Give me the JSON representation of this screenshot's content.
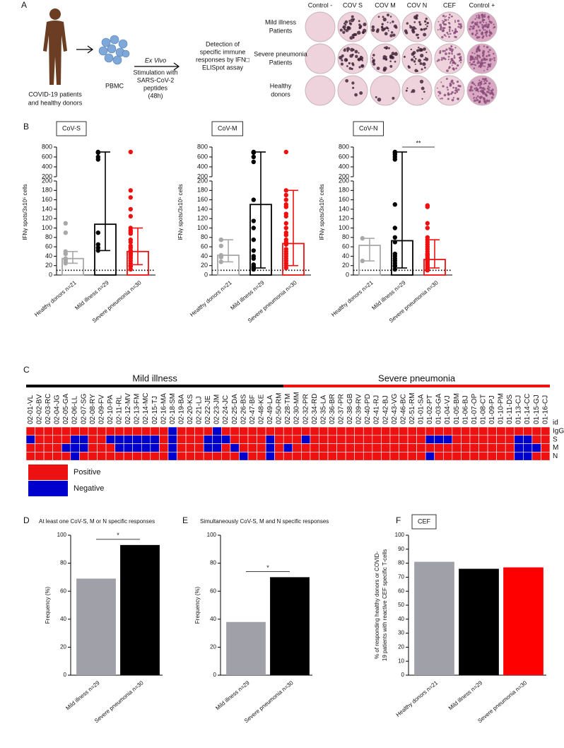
{
  "panel_labels": [
    "A",
    "B",
    "C",
    "D",
    "E",
    "F"
  ],
  "panel_a": {
    "source": [
      "COVID-19 patients",
      "and healthy donors"
    ],
    "pbmc": "PBMC",
    "method": [
      "Ex Vivo",
      "Stimulation with",
      "SARS-CoV-2",
      "peptides",
      "(48h)"
    ],
    "detection": [
      "Detection of",
      "specific immune",
      "responses by IFN□",
      "ELISpot assay"
    ],
    "columns": [
      "Control -",
      "COV S",
      "COV M",
      "COV N",
      "CEF",
      "Control +"
    ],
    "rows": [
      [
        "Mild illness",
        "Patients"
      ],
      [
        "Severe pneumonia",
        "Patients"
      ],
      [
        "Healthy",
        "donors"
      ]
    ]
  },
  "chart_data": [
    {
      "type": "dot-bar",
      "label": "CoV-S",
      "y_label": "IFNγ spots/3x10⁵ cells",
      "categories": [
        "Healthy donors n=21",
        "Mild illness n=29",
        "Severe pneumonia n=30"
      ],
      "colors": [
        "#a8a8a8",
        "#000000",
        "#ee1111"
      ],
      "values": [
        35,
        108,
        50
      ],
      "whisker_low": [
        25,
        52,
        22
      ],
      "whisker_high": [
        50,
        700,
        100
      ],
      "points": [
        [
          110,
          90,
          50,
          45,
          35,
          32,
          28,
          25
        ],
        [
          700,
          690,
          690,
          600,
          550,
          90,
          65,
          58,
          52
        ],
        [
          700,
          180,
          165,
          140,
          125,
          100,
          95,
          92,
          88,
          75,
          70,
          62,
          58,
          52,
          48,
          45,
          42,
          38,
          35,
          30,
          25,
          20,
          18,
          12
        ]
      ],
      "threshold": 10,
      "ylim": [
        0,
        800
      ],
      "axis_break": 200,
      "yticks": [
        0,
        20,
        40,
        60,
        80,
        100,
        120,
        140,
        160,
        180,
        200
      ],
      "yticks_upper": [
        200,
        400,
        600,
        800
      ]
    },
    {
      "type": "dot-bar",
      "label": "CoV-M",
      "y_label": "IFNγ spots/3x10⁵ cells",
      "categories": [
        "Healthy donors n=21",
        "Mild illness n=29",
        "Severe pneumonia n=30"
      ],
      "colors": [
        "#a8a8a8",
        "#000000",
        "#ee1111"
      ],
      "values": [
        42,
        150,
        67
      ],
      "whisker_low": [
        28,
        15,
        20
      ],
      "whisker_high": [
        75,
        700,
        180
      ],
      "points": [
        [
          75,
          75,
          62,
          42,
          40,
          38,
          28
        ],
        [
          700,
          690,
          690,
          600,
          500,
          160,
          115,
          100,
          75,
          52,
          40,
          35,
          22,
          18,
          15,
          12
        ],
        [
          700,
          180,
          170,
          160,
          150,
          145,
          130,
          125,
          110,
          100,
          90,
          85,
          75,
          70,
          65,
          55,
          50,
          45,
          40,
          35,
          30,
          25,
          20,
          15
        ]
      ],
      "threshold": 10,
      "ylim": [
        0,
        800
      ],
      "axis_break": 200,
      "yticks": [
        0,
        20,
        40,
        60,
        80,
        100,
        120,
        140,
        160,
        180,
        200
      ],
      "yticks_upper": [
        200,
        400,
        600,
        800
      ]
    },
    {
      "type": "dot-bar",
      "label": "CoV-N",
      "y_label": "IFNγ spots/3x10⁵ cells",
      "categories": [
        "Healthy donors n=21",
        "Mild illness n=29",
        "Severe pneumonia n=30"
      ],
      "colors": [
        "#a8a8a8",
        "#000000",
        "#ee1111"
      ],
      "values": [
        63,
        73,
        33
      ],
      "whisker_low": [
        30,
        15,
        15
      ],
      "whisker_high": [
        78,
        700,
        75
      ],
      "points": [
        [
          78,
          30
        ],
        [
          700,
          690,
          650,
          600,
          550,
          150,
          100,
          80,
          70,
          45,
          40,
          35,
          30,
          25,
          20,
          18,
          12
        ],
        [
          148,
          145,
          110,
          100,
          80,
          75,
          70,
          65,
          60,
          55,
          50,
          45,
          42,
          38,
          35,
          32,
          30,
          28,
          25,
          22,
          20,
          18,
          15,
          12,
          10
        ]
      ],
      "threshold": 10,
      "annotation": "**",
      "ylim": [
        0,
        800
      ],
      "axis_break": 200,
      "yticks": [
        0,
        20,
        40,
        60,
        80,
        100,
        120,
        140,
        160,
        180,
        200
      ],
      "yticks_upper": [
        200,
        400,
        600,
        800
      ]
    },
    {
      "type": "bar",
      "title": "At least one CoV-S, M or N specific responses",
      "y_label": "Frequency (%)",
      "categories": [
        "Mild illness n=29",
        "Severe pneumonia n=30"
      ],
      "values": [
        69,
        93
      ],
      "colors": [
        "#a0a0a8",
        "#000000"
      ],
      "annotation": "*",
      "ylim": [
        0,
        100
      ],
      "yticks": [
        0,
        20,
        40,
        60,
        80,
        100
      ]
    },
    {
      "type": "bar",
      "title": "Simultaneously CoV-S, M and N specific responses",
      "y_label": "Frequency (%)",
      "categories": [
        "Mild illness n=29",
        "Severe pneumonia n=30"
      ],
      "values": [
        38,
        70
      ],
      "colors": [
        "#a0a0a8",
        "#000000"
      ],
      "annotation": "*",
      "ylim": [
        0,
        100
      ],
      "yticks": [
        0,
        20,
        40,
        60,
        80,
        100
      ]
    },
    {
      "type": "bar",
      "label": "CEF",
      "y_label": [
        "% of responding healthy donors or COVID-",
        "19 patients with reactive CEF specific T-cells"
      ],
      "categories": [
        "Healthy donors n=21",
        "Mild illness n=29",
        "Severe pneumonia n=30"
      ],
      "values": [
        81,
        76,
        77
      ],
      "colors": [
        "#a0a0a8",
        "#000000",
        "#ff0000"
      ],
      "ylim": [
        0,
        100
      ],
      "yticks": [
        0,
        10,
        20,
        30,
        40,
        50,
        60,
        70,
        80,
        90,
        100
      ]
    }
  ],
  "heatmap": {
    "groups": [
      {
        "name": "Mild illness",
        "color": "#000000",
        "ids": [
          "02-01-VL",
          "02-02-BV",
          "02-03-RC",
          "02-04-JG",
          "02-05-GA",
          "02-06-LL",
          "02-07-SG",
          "02-08-RY",
          "02-09-FV",
          "02-10-PA",
          "02-11-RL",
          "02-12-MV",
          "02-13-FM",
          "02-14-MC",
          "02-15-TJ",
          "02-16-MA",
          "02-18-SM",
          "02-19-BA",
          "02-20-KS",
          "02-21-LJ",
          "02-22-JE",
          "02-23-JM",
          "02-24-JC",
          "02-25-DA",
          "02-26-BS",
          "02-47-BF",
          "02-48-KE",
          "02-49-LA",
          "02-50-RM"
        ]
      },
      {
        "name": "Severe pneumonia",
        "color": "#ee1111",
        "ids": [
          "02-28-TM",
          "02-30-MM",
          "02-32-PR",
          "02-34-RD",
          "02-35-LA",
          "02-36-BR",
          "02-37-PR",
          "02-38-GB",
          "02-39-RV",
          "02-40-PD",
          "02-41-RJ",
          "02-42-BJ",
          "02-43-VG",
          "02-46-BC",
          "02-51-RM",
          "01-01-SA",
          "01-02-PT",
          "01-03-GA",
          "01-04-VJ",
          "01-05-BM",
          "01-06-BJ",
          "01-07-OP",
          "01-08-CT",
          "01-09-PJ",
          "01-10-PM",
          "01-11-DS",
          "01-13-CJ",
          "01-14-CC",
          "01-15-GJ",
          "01-16-CJ"
        ]
      }
    ],
    "row_header": "id",
    "rows": [
      {
        "name": "IgG",
        "values": [
          0,
          0,
          0,
          0,
          0,
          0,
          0,
          0,
          0,
          0,
          0,
          0,
          0,
          0,
          0,
          0,
          1,
          0,
          0,
          0,
          0,
          1,
          0,
          0,
          0,
          0,
          0,
          0,
          0,
          0,
          0,
          0,
          0,
          0,
          0,
          0,
          0,
          0,
          0,
          0,
          0,
          0,
          0,
          0,
          0,
          0,
          0,
          0,
          0,
          0,
          0,
          0,
          0,
          0,
          0,
          0,
          0,
          0,
          0
        ]
      },
      {
        "name": "S",
        "values": [
          1,
          0,
          0,
          0,
          0,
          1,
          1,
          0,
          0,
          1,
          1,
          1,
          1,
          1,
          1,
          0,
          1,
          0,
          0,
          0,
          1,
          1,
          1,
          0,
          0,
          0,
          0,
          1,
          0,
          0,
          0,
          1,
          0,
          0,
          0,
          0,
          0,
          0,
          0,
          0,
          0,
          0,
          0,
          0,
          0,
          1,
          1,
          1,
          0,
          0,
          0,
          0,
          0,
          0,
          0,
          1,
          1,
          0,
          0
        ]
      },
      {
        "name": "M",
        "values": [
          0,
          0,
          0,
          0,
          1,
          1,
          1,
          0,
          0,
          0,
          1,
          1,
          1,
          1,
          1,
          0,
          1,
          0,
          0,
          0,
          1,
          1,
          0,
          1,
          0,
          0,
          0,
          1,
          0,
          1,
          0,
          0,
          0,
          0,
          0,
          0,
          0,
          0,
          0,
          0,
          0,
          0,
          0,
          0,
          0,
          0,
          0,
          0,
          0,
          0,
          0,
          0,
          0,
          0,
          0,
          1,
          1,
          1,
          0
        ]
      },
      {
        "name": "N",
        "values": [
          0,
          0,
          0,
          0,
          0,
          1,
          0,
          0,
          0,
          0,
          0,
          0,
          0,
          0,
          0,
          0,
          1,
          0,
          0,
          0,
          0,
          0,
          0,
          0,
          1,
          0,
          0,
          1,
          0,
          0,
          0,
          0,
          0,
          0,
          0,
          0,
          0,
          0,
          0,
          0,
          0,
          0,
          0,
          0,
          0,
          1,
          0,
          0,
          0,
          0,
          0,
          0,
          0,
          0,
          0,
          1,
          1,
          0,
          0
        ]
      }
    ],
    "legend": [
      {
        "label": "Positive",
        "color": "#ee1111"
      },
      {
        "label": "Negative",
        "color": "#0000cc"
      }
    ]
  }
}
